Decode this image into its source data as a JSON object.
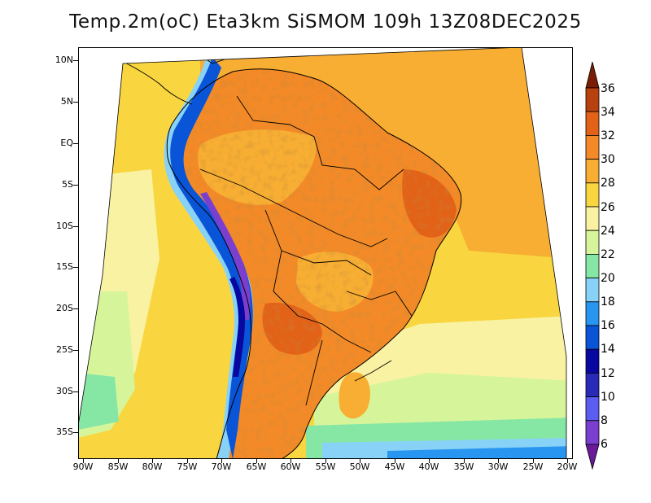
{
  "title": "Temp.2m(oC) Eta3km SiSMOM 109h 13Z08DEC2025",
  "map": {
    "variable": "2 m temperature",
    "units": "oC",
    "lon_labels": [
      "90W",
      "85W",
      "80W",
      "75W",
      "70W",
      "65W",
      "60W",
      "55W",
      "50W",
      "45W",
      "40W",
      "35W",
      "30W",
      "25W",
      "20W"
    ],
    "lat_labels": [
      "10N",
      "5N",
      "EQ",
      "5S",
      "10S",
      "15S",
      "20S",
      "25S",
      "30S",
      "35S"
    ]
  },
  "colorbar": {
    "labels": [
      "36",
      "34",
      "32",
      "30",
      "28",
      "26",
      "24",
      "22",
      "20",
      "18",
      "16",
      "14",
      "12",
      "10",
      "8",
      "6"
    ],
    "levels": [
      6,
      8,
      10,
      12,
      14,
      16,
      18,
      20,
      22,
      24,
      26,
      28,
      30,
      32,
      34,
      36
    ],
    "colors": [
      "#6a1a98",
      "#7b3fd0",
      "#5b5cf0",
      "#2a2ab8",
      "#0808a0",
      "#0a54d8",
      "#2896f0",
      "#88d2f8",
      "#86e7a5",
      "#d6f59a",
      "#f8f2a2",
      "#f9d63f",
      "#f7ae32",
      "#f38a27",
      "#e26218",
      "#b8420f",
      "#7a1d05"
    ]
  }
}
